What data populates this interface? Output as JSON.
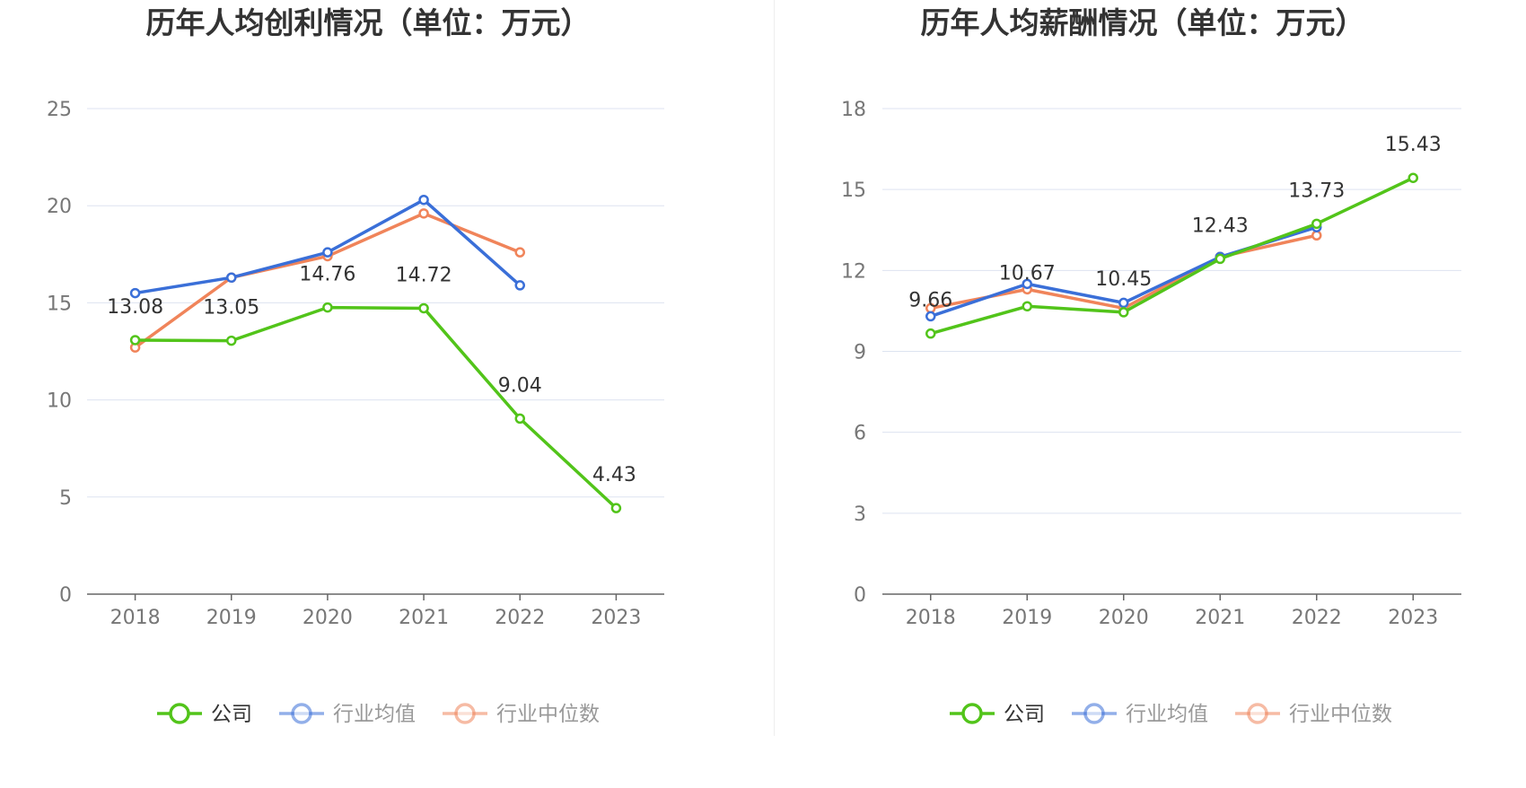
{
  "colors": {
    "company": "#52c41a",
    "industry_avg": "#3a6fd8",
    "industry_median": "#f0845a",
    "grid": "#dde3f0",
    "axis": "#666666"
  },
  "legend": [
    {
      "key": "company",
      "label": "公司",
      "active": true
    },
    {
      "key": "industry_avg",
      "label": "行业均值",
      "active": false
    },
    {
      "key": "industry_median",
      "label": "行业中位数",
      "active": false
    }
  ],
  "chart_data": [
    {
      "type": "line",
      "title": "历年人均创利情况（单位：万元）",
      "categories": [
        "2018",
        "2019",
        "2020",
        "2021",
        "2022",
        "2023"
      ],
      "ylim": [
        0,
        25
      ],
      "yticks": [
        0,
        5,
        10,
        15,
        20,
        25
      ],
      "grid": true,
      "legend_position": "bottom",
      "series": [
        {
          "key": "company",
          "name": "公司",
          "values": [
            13.08,
            13.05,
            14.76,
            14.72,
            9.04,
            4.43
          ],
          "labels": [
            "13.08",
            "13.05",
            "14.76",
            "14.72",
            "9.04",
            "4.43"
          ]
        },
        {
          "key": "industry_avg",
          "name": "行业均值",
          "values": [
            15.5,
            16.3,
            17.6,
            20.3,
            15.9,
            null
          ]
        },
        {
          "key": "industry_median",
          "name": "行业中位数",
          "values": [
            12.7,
            16.3,
            17.4,
            19.6,
            17.6,
            null
          ]
        }
      ]
    },
    {
      "type": "line",
      "title": "历年人均薪酬情况（单位：万元）",
      "categories": [
        "2018",
        "2019",
        "2020",
        "2021",
        "2022",
        "2023"
      ],
      "ylim": [
        0,
        18
      ],
      "yticks": [
        0,
        3,
        6,
        9,
        12,
        15,
        18
      ],
      "grid": true,
      "legend_position": "bottom",
      "series": [
        {
          "key": "company",
          "name": "公司",
          "values": [
            9.66,
            10.67,
            10.45,
            12.43,
            13.73,
            15.43
          ],
          "labels": [
            "9.66",
            "10.67",
            "10.45",
            "12.43",
            "13.73",
            "15.43"
          ]
        },
        {
          "key": "industry_avg",
          "name": "行业均值",
          "values": [
            10.3,
            11.5,
            10.8,
            12.5,
            13.6,
            null
          ]
        },
        {
          "key": "industry_median",
          "name": "行业中位数",
          "values": [
            10.6,
            11.3,
            10.6,
            12.5,
            13.3,
            null
          ]
        }
      ]
    }
  ]
}
